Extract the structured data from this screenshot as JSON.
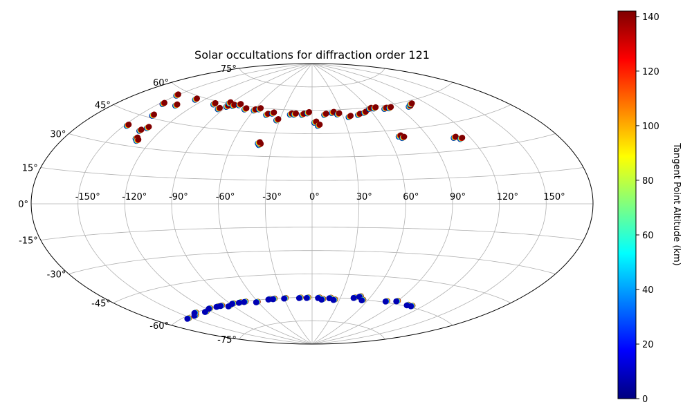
{
  "chart_data": {
    "type": "scatter",
    "projection": "aitoff",
    "title": "Solar occultations for diffraction order 121",
    "xlabel": "",
    "ylabel": "",
    "grid": true,
    "lon_ticks": [
      {
        "value": -150,
        "label": "-150°"
      },
      {
        "value": -120,
        "label": "-120°"
      },
      {
        "value": -90,
        "label": "-90°"
      },
      {
        "value": -60,
        "label": "-60°"
      },
      {
        "value": -30,
        "label": "-30°"
      },
      {
        "value": 0,
        "label": "0°"
      },
      {
        "value": 30,
        "label": "30°"
      },
      {
        "value": 60,
        "label": "60°"
      },
      {
        "value": 90,
        "label": "90°"
      },
      {
        "value": 120,
        "label": "120°"
      },
      {
        "value": 150,
        "label": "150°"
      }
    ],
    "lat_ticks": [
      {
        "value": 75,
        "label": "75°"
      },
      {
        "value": 60,
        "label": "60°"
      },
      {
        "value": 45,
        "label": "45°"
      },
      {
        "value": 30,
        "label": "30°"
      },
      {
        "value": 15,
        "label": "15°"
      },
      {
        "value": 0,
        "label": "0°"
      },
      {
        "value": -15,
        "label": "-15°"
      },
      {
        "value": -30,
        "label": "-30°"
      },
      {
        "value": -45,
        "label": "-45°"
      },
      {
        "value": -60,
        "label": "-60°"
      },
      {
        "value": -75,
        "label": "-75°"
      }
    ],
    "colorbar": {
      "label": "Tangent Point Altitude (km)",
      "range": [
        0,
        142
      ],
      "ticks": [
        {
          "value": 0,
          "label": "0"
        },
        {
          "value": 20,
          "label": "20"
        },
        {
          "value": 40,
          "label": "40"
        },
        {
          "value": 60,
          "label": "60"
        },
        {
          "value": 80,
          "label": "80"
        },
        {
          "value": 100,
          "label": "100"
        },
        {
          "value": 120,
          "label": "120"
        },
        {
          "value": 140,
          "label": "140"
        }
      ]
    },
    "series": [
      {
        "name": "north-occultations",
        "hemisphere": "north",
        "altitude_range": [
          0,
          142
        ],
        "points": [
          [
            -150,
            57
          ],
          [
            -147,
            52
          ],
          [
            -140,
            46
          ],
          [
            -135,
            53
          ],
          [
            -132,
            40
          ],
          [
            -128,
            58
          ],
          [
            -132,
            34
          ],
          [
            -130,
            33
          ],
          [
            -148,
            39
          ],
          [
            -135,
            38
          ],
          [
            -105,
            58
          ],
          [
            -95,
            56
          ],
          [
            -90,
            58
          ],
          [
            -92,
            60
          ],
          [
            -85,
            59
          ],
          [
            -80,
            60
          ],
          [
            -70,
            58
          ],
          [
            -60,
            58
          ],
          [
            -56,
            59
          ],
          [
            -45,
            56
          ],
          [
            -40,
            57
          ],
          [
            -33,
            53
          ],
          [
            -22,
            57
          ],
          [
            -18,
            57
          ],
          [
            -10,
            57
          ],
          [
            -5,
            58
          ],
          [
            -40,
            37
          ],
          [
            -41,
            38
          ],
          [
            2,
            52
          ],
          [
            5,
            50
          ],
          [
            12,
            57
          ],
          [
            20,
            58
          ],
          [
            25,
            57
          ],
          [
            35,
            55
          ],
          [
            45,
            56
          ],
          [
            52,
            57
          ],
          [
            60,
            59
          ],
          [
            65,
            59
          ],
          [
            75,
            58
          ],
          [
            80,
            58
          ],
          [
            100,
            57
          ],
          [
            104,
            58
          ],
          [
            68,
            41
          ],
          [
            70,
            40
          ],
          [
            108,
            37
          ],
          [
            112,
            36
          ]
        ]
      },
      {
        "name": "south-occultations",
        "hemisphere": "south",
        "altitude_range": [
          0,
          142
        ],
        "points": [
          [
            -152,
            -61
          ],
          [
            -140,
            -61
          ],
          [
            -135,
            -60
          ],
          [
            -124,
            -61
          ],
          [
            -115,
            -60
          ],
          [
            -105,
            -60
          ],
          [
            -100,
            -60
          ],
          [
            -93,
            -61
          ],
          [
            -86,
            -60
          ],
          [
            -78,
            -60
          ],
          [
            -72,
            -60
          ],
          [
            -60,
            -61
          ],
          [
            -45,
            -60
          ],
          [
            -40,
            -60
          ],
          [
            -28,
            -60
          ],
          [
            -12,
            -60
          ],
          [
            -4,
            -60
          ],
          [
            8,
            -60
          ],
          [
            12,
            -61
          ],
          [
            20,
            -60
          ],
          [
            25,
            -61
          ],
          [
            45,
            -59
          ],
          [
            50,
            -58
          ],
          [
            55,
            -60
          ],
          [
            80,
            -59
          ],
          [
            90,
            -58
          ],
          [
            105,
            -59
          ],
          [
            110,
            -59
          ]
        ]
      }
    ]
  }
}
